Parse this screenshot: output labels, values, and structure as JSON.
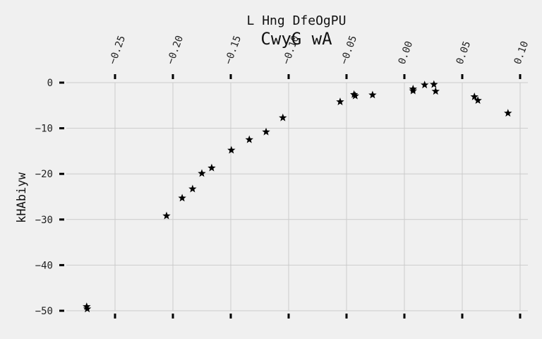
{
  "chart_data": {
    "type": "scatter",
    "suptitle": "L Hng DfeOgPU",
    "title": "CwyG wA",
    "xlabel": "",
    "ylabel": "kHAbiyw",
    "xlim": [
      -0.275,
      0.105
    ],
    "ylim": [
      -51,
      2
    ],
    "grid": true,
    "marker": "star",
    "marker_color": "#000000",
    "background": "#f0f0f0",
    "grid_color": "#cbcbcb",
    "x_ticks": [
      {
        "value": -0.25,
        "label": "−0.25"
      },
      {
        "value": -0.2,
        "label": "−0.20"
      },
      {
        "value": -0.15,
        "label": "−0.15"
      },
      {
        "value": -0.1,
        "label": "−0.10"
      },
      {
        "value": -0.05,
        "label": "−0.05"
      },
      {
        "value": 0.0,
        "label": "0.00"
      },
      {
        "value": 0.05,
        "label": "0.05"
      },
      {
        "value": 0.1,
        "label": "0.10"
      }
    ],
    "y_ticks": [
      {
        "value": 0,
        "label": "0"
      },
      {
        "value": -10,
        "label": "−10"
      },
      {
        "value": -20,
        "label": "−20"
      },
      {
        "value": -30,
        "label": "−30"
      },
      {
        "value": -40,
        "label": "−40"
      },
      {
        "value": -50,
        "label": "−50"
      }
    ],
    "points": [
      {
        "x": -0.2745,
        "y": -49.1
      },
      {
        "x": -0.274,
        "y": -49.6
      },
      {
        "x": -0.2055,
        "y": -29.2
      },
      {
        "x": -0.192,
        "y": -25.3
      },
      {
        "x": -0.183,
        "y": -23.3
      },
      {
        "x": -0.175,
        "y": -19.9
      },
      {
        "x": -0.1665,
        "y": -18.7
      },
      {
        "x": -0.1495,
        "y": -14.8
      },
      {
        "x": -0.134,
        "y": -12.5
      },
      {
        "x": -0.1195,
        "y": -10.8
      },
      {
        "x": -0.105,
        "y": -7.7
      },
      {
        "x": -0.0555,
        "y": -4.2
      },
      {
        "x": -0.0435,
        "y": -2.6
      },
      {
        "x": -0.0425,
        "y": -2.9
      },
      {
        "x": -0.0275,
        "y": -2.7
      },
      {
        "x": 0.0075,
        "y": -1.4
      },
      {
        "x": 0.0075,
        "y": -1.8
      },
      {
        "x": 0.0175,
        "y": -0.5
      },
      {
        "x": 0.0255,
        "y": -0.4
      },
      {
        "x": 0.027,
        "y": -1.9
      },
      {
        "x": 0.0605,
        "y": -3.1
      },
      {
        "x": 0.0635,
        "y": -3.9
      },
      {
        "x": 0.0895,
        "y": -6.7
      }
    ]
  }
}
